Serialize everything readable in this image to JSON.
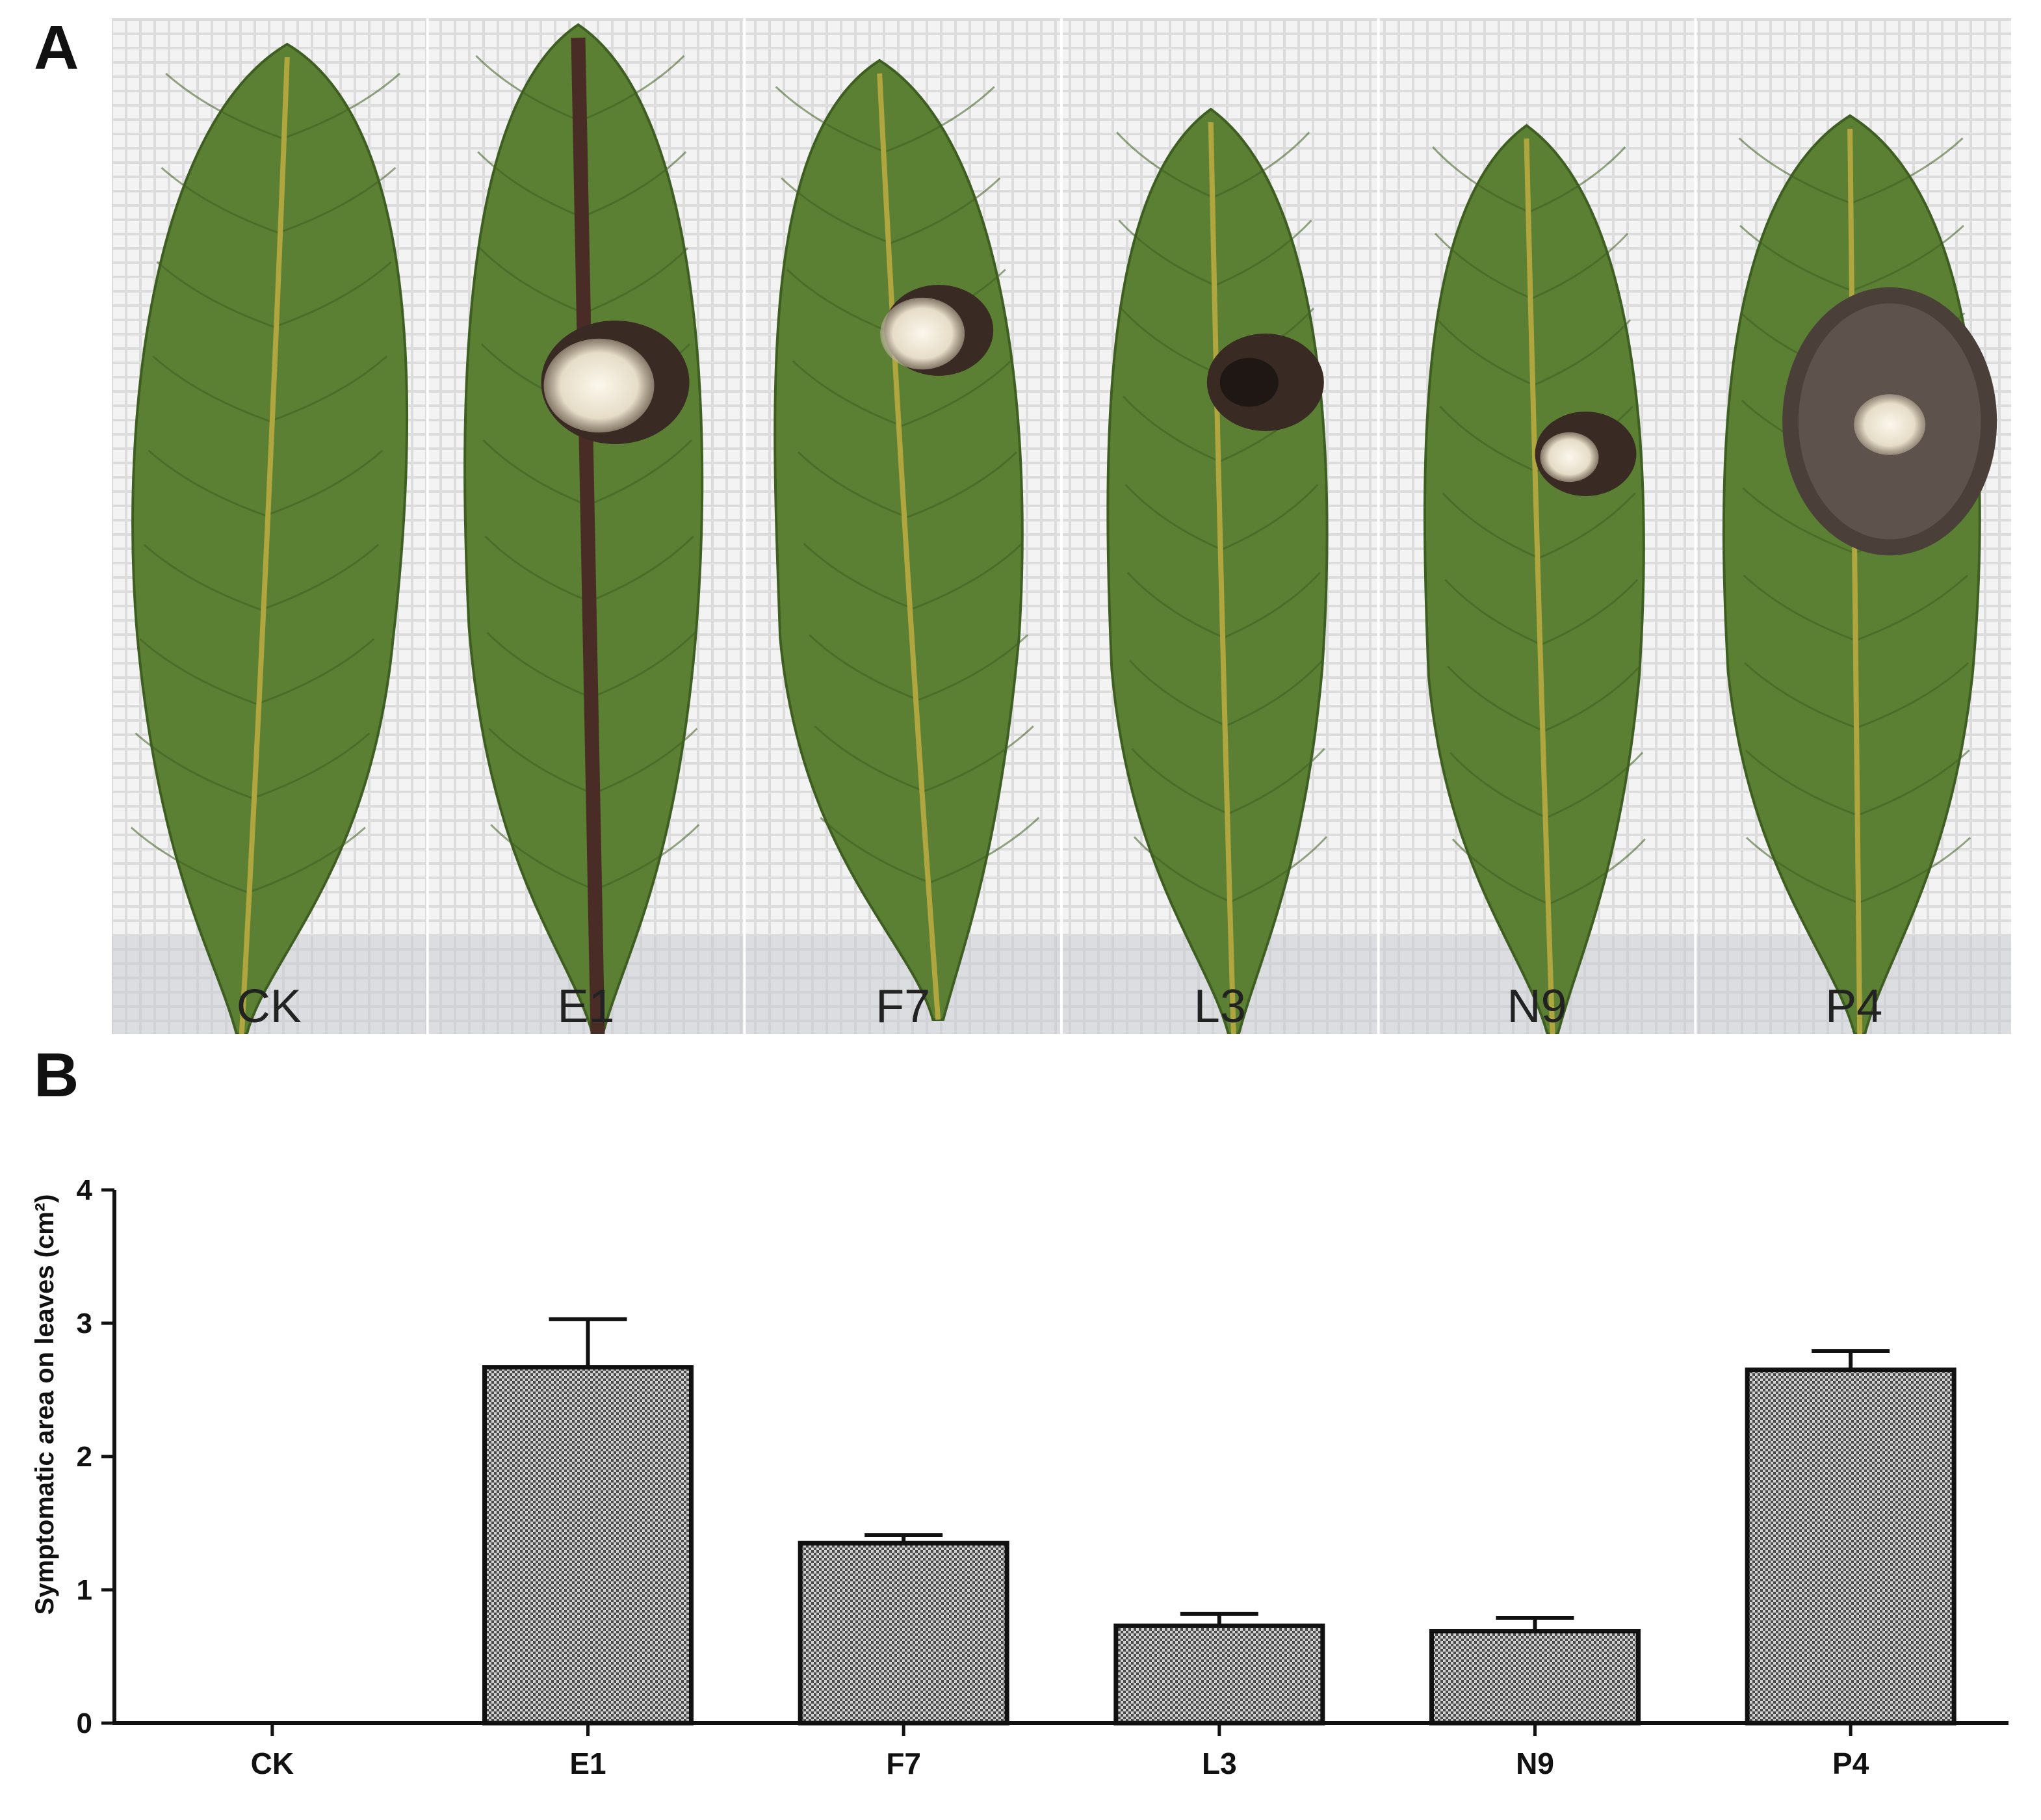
{
  "figure": {
    "panel_a_label": "A",
    "panel_b_label": "B"
  },
  "photos": {
    "labels": [
      "CK",
      "E1",
      "F7",
      "L3",
      "N9",
      "P4"
    ],
    "colors": {
      "leaf": "#5b7f33",
      "leaf_dark": "#3f5f22",
      "midrib": "#b0a640",
      "lesion": "#3a2a24",
      "mycelium": "#ece6d6",
      "gauze": "#f1f1f1"
    }
  },
  "chart_data": {
    "type": "bar",
    "categories": [
      "CK",
      "E1",
      "F7",
      "L3",
      "N9",
      "P4"
    ],
    "values": [
      0,
      2.67,
      1.35,
      0.73,
      0.69,
      2.65
    ],
    "errors": [
      0,
      0.36,
      0.06,
      0.09,
      0.1,
      0.14
    ],
    "ylabel": "Symptomatic area on leaves (cm²)",
    "ylim": [
      0,
      4
    ],
    "yticks": [
      "0",
      "1",
      "2",
      "3",
      "4"
    ],
    "grid": false,
    "legend": "none",
    "bar_fill": "checkered grey"
  }
}
